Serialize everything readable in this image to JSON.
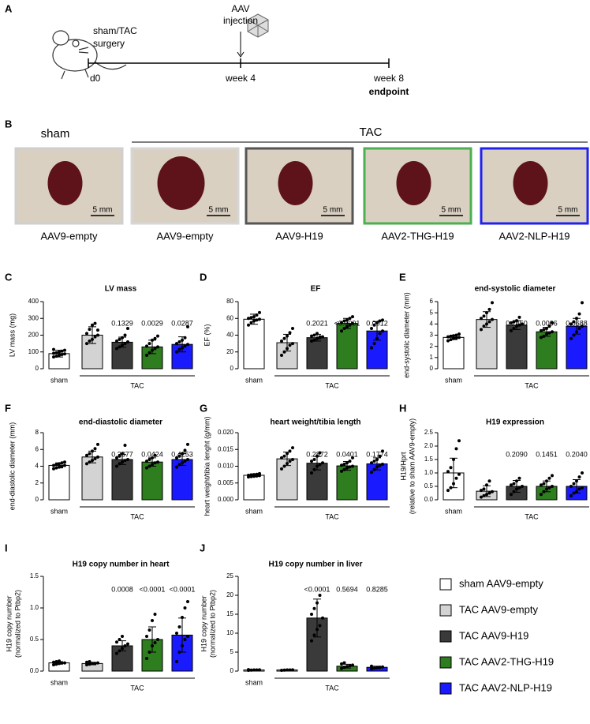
{
  "panel_a": {
    "label": "A",
    "surgery_line1": "sham/TAC",
    "surgery_line2": "surgery",
    "injection_line1": "AAV",
    "injection_line2": "injection",
    "timepoints": [
      "d0",
      "week 4",
      "week 8"
    ],
    "endpoint": "endpoint"
  },
  "panel_b": {
    "label": "B",
    "group_sham": "sham",
    "group_tac": "TAC",
    "panels": [
      {
        "caption": "AAV9-empty",
        "frame_color": "#cfcfcf",
        "scale": "5 mm"
      },
      {
        "caption": "AAV9-empty",
        "frame_color": "#d6d6d6",
        "scale": "5 mm"
      },
      {
        "caption": "AAV9-H19",
        "frame_color": "#555555",
        "scale": "5 mm"
      },
      {
        "caption": "AAV2-THG-H19",
        "frame_color": "#4caf50",
        "scale": "5 mm"
      },
      {
        "caption": "AAV2-NLP-H19",
        "frame_color": "#2222ee",
        "scale": "5 mm"
      }
    ]
  },
  "legend": {
    "entries": [
      {
        "name": "sham AAV9-empty",
        "color": "#ffffff"
      },
      {
        "name": "TAC AAV9-empty",
        "color": "#d3d3d3"
      },
      {
        "name": "TAC AAV9-H19",
        "color": "#3a3a3a"
      },
      {
        "name": "TAC AAV2-THG-H19",
        "color": "#2e7d1e"
      },
      {
        "name": "TAC AAV2-NLP-H19",
        "color": "#1a1aff"
      }
    ]
  },
  "chart_data": [
    {
      "type": "bar",
      "label": "C",
      "title": "LV mass",
      "y_label": "LV mass (mg)",
      "x_labels": [
        "sham",
        "TAC"
      ],
      "ylim": [
        0,
        400
      ],
      "yticks": [
        0,
        100,
        200,
        300,
        400
      ],
      "values": [
        90,
        200,
        158,
        130,
        145
      ],
      "errors": [
        20,
        50,
        30,
        40,
        45
      ],
      "p_value_labels": [
        null,
        null,
        "0.1329",
        "0.0029",
        "0.0287"
      ],
      "points": [
        [
          70,
          75,
          80,
          85,
          88,
          92,
          95,
          100,
          105,
          110,
          115
        ],
        [
          150,
          165,
          175,
          190,
          200,
          210,
          235,
          260,
          270,
          230
        ],
        [
          120,
          130,
          140,
          150,
          160,
          165,
          175,
          185,
          200,
          240
        ],
        [
          80,
          95,
          110,
          120,
          130,
          135,
          150,
          170,
          180,
          195
        ],
        [
          100,
          115,
          125,
          135,
          145,
          150,
          160,
          170,
          185,
          250
        ]
      ]
    },
    {
      "type": "bar",
      "label": "D",
      "title": "EF",
      "y_label": "EF (%)",
      "x_labels": [
        "sham",
        "TAC"
      ],
      "ylim": [
        0,
        80
      ],
      "yticks": [
        0,
        20,
        40,
        60,
        80
      ],
      "values": [
        59,
        31,
        37,
        54,
        45
      ],
      "errors": [
        6,
        10,
        4,
        6,
        11
      ],
      "p_value_labels": [
        null,
        null,
        "0.2021",
        "<0.0001",
        "0.0012"
      ],
      "points": [
        [
          52,
          55,
          57,
          58,
          59,
          60,
          61,
          62,
          64,
          67
        ],
        [
          16,
          20,
          24,
          28,
          30,
          33,
          36,
          39,
          43,
          48
        ],
        [
          33,
          34,
          36,
          37,
          38,
          39,
          40,
          42,
          38
        ],
        [
          45,
          48,
          50,
          52,
          54,
          55,
          57,
          58,
          60,
          62
        ],
        [
          25,
          30,
          36,
          42,
          45,
          48,
          52,
          55,
          57,
          58
        ]
      ]
    },
    {
      "type": "bar",
      "label": "E",
      "title": "end-systolic diameter",
      "y_label": "end-systolic diameter (mm)",
      "x_labels": [
        "sham",
        "TAC"
      ],
      "ylim": [
        0,
        6
      ],
      "yticks": [
        0,
        1,
        2,
        3,
        4,
        5,
        6
      ],
      "values": [
        2.8,
        4.4,
        3.9,
        3.3,
        3.8
      ],
      "errors": [
        0.2,
        0.7,
        0.4,
        0.4,
        0.7
      ],
      "p_value_labels": [
        null,
        null,
        "0.2450",
        "0.0006",
        "0.0688"
      ],
      "points": [
        [
          2.5,
          2.6,
          2.7,
          2.75,
          2.8,
          2.85,
          2.9,
          2.95,
          3.0,
          3.1
        ],
        [
          3.5,
          3.8,
          4.0,
          4.2,
          4.4,
          4.5,
          4.7,
          5.0,
          5.3,
          5.9
        ],
        [
          3.4,
          3.6,
          3.8,
          3.9,
          4.0,
          4.1,
          4.2,
          4.3,
          4.6
        ],
        [
          2.8,
          2.9,
          3.1,
          3.2,
          3.3,
          3.4,
          3.5,
          3.6,
          3.8,
          4.1
        ],
        [
          2.7,
          3.0,
          3.3,
          3.6,
          3.8,
          4.0,
          4.2,
          4.5,
          4.9,
          5.9
        ]
      ]
    },
    {
      "type": "bar",
      "label": "F",
      "title": "end-diastolic diameter",
      "y_label": "end-diastolic diameter (mm)",
      "x_labels": [
        "sham",
        "TAC"
      ],
      "ylim": [
        0,
        8
      ],
      "yticks": [
        0,
        2,
        4,
        6,
        8
      ],
      "values": [
        4.1,
        5.1,
        4.8,
        4.5,
        4.8
      ],
      "errors": [
        0.3,
        0.7,
        0.6,
        0.5,
        0.7
      ],
      "p_value_labels": [
        null,
        null,
        "0.3877",
        "0.0424",
        "0.4253"
      ],
      "points": [
        [
          3.7,
          3.8,
          3.9,
          4.0,
          4.1,
          4.1,
          4.2,
          4.3,
          4.4,
          4.5
        ],
        [
          4.3,
          4.5,
          4.7,
          4.9,
          5.1,
          5.3,
          5.5,
          5.8,
          6.1,
          6.6
        ],
        [
          4.0,
          4.3,
          4.5,
          4.7,
          4.8,
          5.0,
          5.2,
          5.5,
          6.5
        ],
        [
          3.8,
          4.0,
          4.2,
          4.4,
          4.5,
          4.6,
          4.8,
          5.0,
          5.3
        ],
        [
          3.9,
          4.2,
          4.4,
          4.6,
          4.8,
          5.0,
          5.2,
          5.5,
          5.9,
          6.6
        ]
      ]
    },
    {
      "type": "bar",
      "label": "G",
      "title": "heart weight/tibia length",
      "y_label": "heart weight/tibia lenght (g/mm)",
      "x_labels": [
        "sham",
        "TAC"
      ],
      "ylim": [
        0,
        0.02
      ],
      "yticks": [
        {
          "value": 0,
          "label": "0.000"
        },
        {
          "value": 0.005,
          "label": "0.005"
        },
        {
          "value": 0.01,
          "label": "0.010"
        },
        {
          "value": 0.015,
          "label": "0.015"
        },
        {
          "value": 0.02,
          "label": "0.020"
        }
      ],
      "values": [
        0.0073,
        0.0122,
        0.0109,
        0.0101,
        0.0107
      ],
      "errors": [
        0.0004,
        0.002,
        0.002,
        0.0013,
        0.0018
      ],
      "p_value_labels": [
        null,
        null,
        "0.2872",
        "0.0401",
        "0.1774"
      ],
      "points": [
        [
          0.0068,
          0.0069,
          0.007,
          0.0071,
          0.0072,
          0.0073,
          0.0074,
          0.0075,
          0.0076,
          0.0078
        ],
        [
          0.0092,
          0.01,
          0.0108,
          0.0115,
          0.012,
          0.0125,
          0.013,
          0.0138,
          0.0145,
          0.0155
        ],
        [
          0.008,
          0.009,
          0.01,
          0.0105,
          0.011,
          0.0115,
          0.012,
          0.013,
          0.014
        ],
        [
          0.0085,
          0.009,
          0.0095,
          0.0098,
          0.01,
          0.0103,
          0.0106,
          0.011,
          0.0115,
          0.0125
        ],
        [
          0.0082,
          0.009,
          0.0098,
          0.0102,
          0.0106,
          0.011,
          0.0115,
          0.012,
          0.013,
          0.0145
        ]
      ]
    },
    {
      "type": "bar",
      "label": "H",
      "title": "H19 expression",
      "y_label": "H19/Hprt",
      "y_sublabel": "(relative to sham AAV9-empty)",
      "x_labels": [
        "sham",
        "TAC"
      ],
      "ylim": [
        0,
        2.5
      ],
      "yticks": [
        {
          "value": 0,
          "label": "0.0"
        },
        {
          "value": 0.5,
          "label": "0.5"
        },
        {
          "value": 1,
          "label": "1.0"
        },
        {
          "value": 1.5,
          "label": "1.5"
        },
        {
          "value": 2,
          "label": "2.0"
        },
        {
          "value": 2.5,
          "label": "2.5"
        }
      ],
      "values": [
        1.0,
        0.32,
        0.5,
        0.5,
        0.5
      ],
      "errors": [
        0.55,
        0.2,
        0.22,
        0.2,
        0.25
      ],
      "p_value_labels": [
        null,
        null,
        "0.2090",
        "0.1451",
        "0.2040"
      ],
      "points": [
        [
          0.35,
          0.45,
          0.6,
          0.8,
          0.95,
          1.05,
          1.2,
          1.5,
          1.9,
          2.2
        ],
        [
          0.1,
          0.15,
          0.2,
          0.25,
          0.3,
          0.35,
          0.4,
          0.55,
          0.7
        ],
        [
          0.2,
          0.3,
          0.4,
          0.45,
          0.5,
          0.55,
          0.6,
          0.7,
          0.8
        ],
        [
          0.2,
          0.3,
          0.4,
          0.45,
          0.5,
          0.55,
          0.6,
          0.7,
          0.8,
          0.9
        ],
        [
          0.15,
          0.25,
          0.3,
          0.4,
          0.45,
          0.5,
          0.6,
          0.7,
          0.85,
          1.0
        ]
      ]
    },
    {
      "type": "bar",
      "label": "I",
      "title": "H19 copy number in heart",
      "y_label": "H19 copy number",
      "y_sublabel": "(normalized to Ptbp2)",
      "x_labels": [
        "sham",
        "TAC"
      ],
      "ylim": [
        0,
        1.5
      ],
      "yticks": [
        {
          "value": 0,
          "label": "0.0"
        },
        {
          "value": 0.5,
          "label": "0.5"
        },
        {
          "value": 1,
          "label": "1.0"
        },
        {
          "value": 1.5,
          "label": "1.5"
        }
      ],
      "values": [
        0.13,
        0.12,
        0.4,
        0.5,
        0.57
      ],
      "errors": [
        0.02,
        0.02,
        0.08,
        0.2,
        0.27
      ],
      "p_value_labels": [
        null,
        null,
        "0.0008",
        "<0.0001",
        "<0.0001"
      ],
      "points": [
        [
          0.1,
          0.11,
          0.12,
          0.13,
          0.13,
          0.14,
          0.15,
          0.16
        ],
        [
          0.1,
          0.11,
          0.12,
          0.12,
          0.13,
          0.14,
          0.15
        ],
        [
          0.28,
          0.32,
          0.36,
          0.4,
          0.43,
          0.46,
          0.5,
          0.55
        ],
        [
          0.2,
          0.3,
          0.4,
          0.45,
          0.5,
          0.55,
          0.65,
          0.8,
          0.9
        ],
        [
          0.15,
          0.3,
          0.4,
          0.5,
          0.55,
          0.6,
          0.7,
          0.85,
          1.0,
          1.1
        ]
      ]
    },
    {
      "type": "bar",
      "label": "J",
      "title": "H19 copy number in liver",
      "y_label": "H19 copy number",
      "y_sublabel": "(normalized to Ptbp2)",
      "x_labels": [
        "sham",
        "TAC"
      ],
      "ylim": [
        0,
        25
      ],
      "yticks": [
        0,
        5,
        10,
        15,
        20,
        25
      ],
      "values": [
        0.3,
        0.3,
        14,
        1.3,
        1.0
      ],
      "errors": [
        0.05,
        0.05,
        5,
        0.5,
        0.3
      ],
      "p_value_labels": [
        null,
        null,
        "<0.0001",
        "0.5694",
        "0.8285"
      ],
      "points": [
        [
          0.2,
          0.25,
          0.3,
          0.3,
          0.35,
          0.4
        ],
        [
          0.2,
          0.25,
          0.3,
          0.3,
          0.35
        ],
        [
          8,
          9.5,
          11,
          12,
          14,
          15,
          16.5,
          18,
          20
        ],
        [
          0.7,
          1.0,
          1.2,
          1.4,
          1.6,
          1.9,
          2.2
        ],
        [
          0.6,
          0.8,
          0.9,
          1.0,
          1.1,
          1.3
        ]
      ]
    }
  ]
}
